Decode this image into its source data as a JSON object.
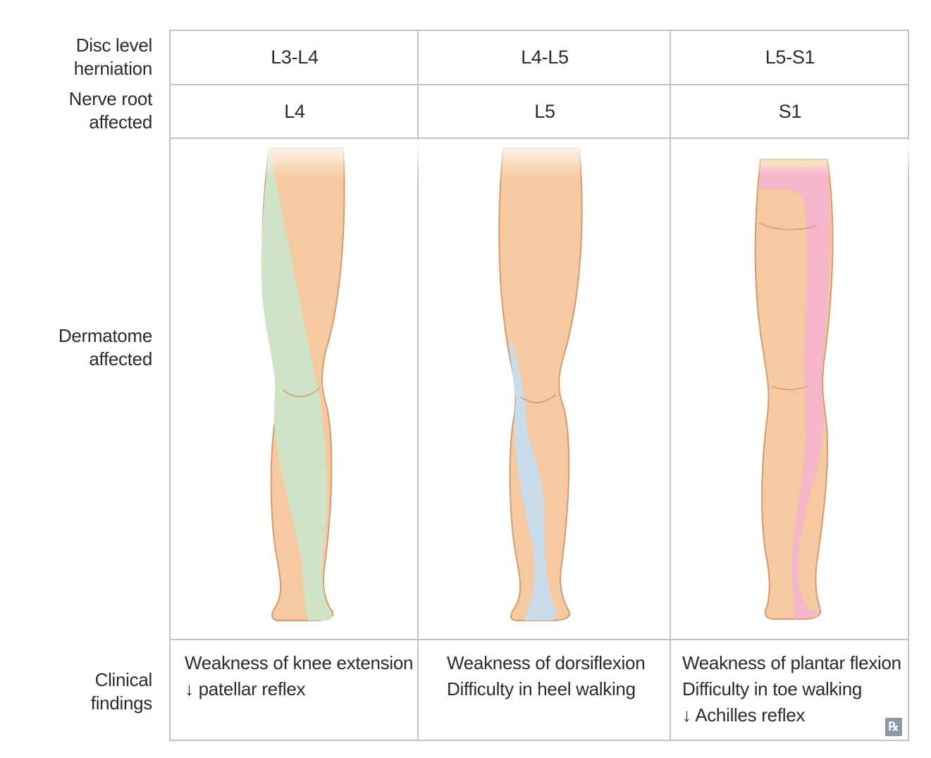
{
  "rows": {
    "disc": [
      "Disc level",
      "herniation"
    ],
    "nerve": [
      "Nerve root",
      "affected"
    ],
    "dermatome": [
      "Dermatome",
      "affected"
    ],
    "clinical": [
      "Clinical",
      "findings"
    ]
  },
  "columns": [
    {
      "disc": "L3-L4",
      "root": "L4",
      "color": "#cfe3c6",
      "findings": [
        "Weakness of knee extension",
        "↓ patellar reflex"
      ]
    },
    {
      "disc": "L4-L5",
      "root": "L5",
      "color": "#c9dcec",
      "findings": [
        "Weakness of dorsiflexion",
        "Difficulty in heel walking"
      ]
    },
    {
      "disc": "L5-S1",
      "root": "S1",
      "color": "#f4b6c8",
      "findings": [
        "Weakness of plantar flexion",
        "Difficulty in toe walking",
        "↓ Achilles reflex"
      ]
    }
  ],
  "colors": {
    "skin": "#f7c9a0",
    "outline": "#d59a70",
    "grid": "#c4c4c4"
  },
  "badge": "℞"
}
